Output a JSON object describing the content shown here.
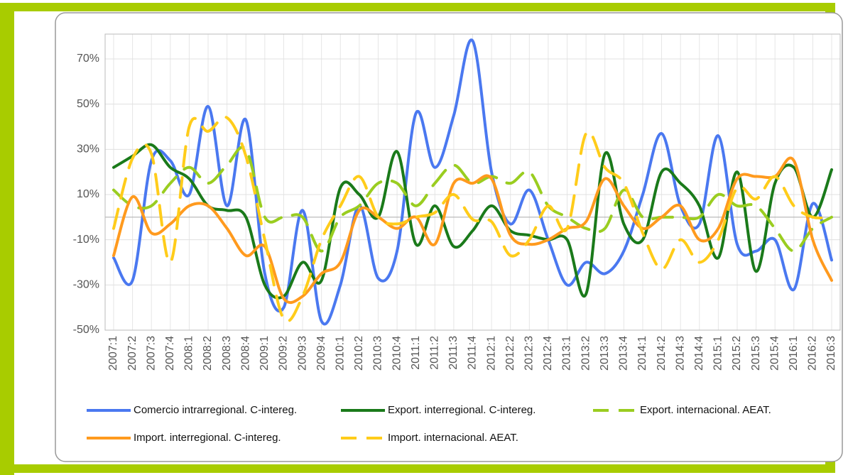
{
  "chart_data": {
    "type": "line",
    "smooth": true,
    "grid": true,
    "categories": [
      "2007:1",
      "2007:2",
      "2007:3",
      "2007:4",
      "2008:1",
      "2008:2",
      "2008:3",
      "2008:4",
      "2009:1",
      "2009:2",
      "2009:3",
      "2009:4",
      "2010:1",
      "2010:2",
      "2010:3",
      "2010:4",
      "2011:1",
      "2011:2",
      "2011:3",
      "2011:4",
      "2012:1",
      "2012:2",
      "2012:3",
      "2012:4",
      "2013:1",
      "2013:2",
      "2013:3",
      "2013:4",
      "2014:1",
      "2014:2",
      "2014:3",
      "2014:4",
      "2015:1",
      "2015:2",
      "2015:3",
      "2015:4",
      "2016:1",
      "2016:2",
      "2016:3"
    ],
    "ylim": [
      -50,
      81
    ],
    "yticks": [
      {
        "value": -50,
        "label": "-50%"
      },
      {
        "value": -30,
        "label": "-30%"
      },
      {
        "value": -10,
        "label": "-10%"
      },
      {
        "value": 10,
        "label": "10%"
      },
      {
        "value": 30,
        "label": "30%"
      },
      {
        "value": 50,
        "label": "50%"
      },
      {
        "value": 70,
        "label": "70%"
      }
    ],
    "series": [
      {
        "name": "Comercio intrarregional. C-intereg.",
        "color": "#4a78f0",
        "line_style": "solid",
        "values": [
          -18,
          -28,
          25,
          25,
          10,
          49,
          5,
          43,
          -25,
          -40,
          3,
          -46,
          -30,
          5,
          -27,
          -15,
          46,
          22,
          45,
          78,
          20,
          -3,
          12,
          -10,
          -30,
          -20,
          -25,
          -15,
          10,
          37,
          5,
          -3,
          36,
          -12,
          -15,
          -10,
          -32,
          6,
          -19
        ]
      },
      {
        "name": "Export. interregional. C-intereg.",
        "color": "#1a7a1a",
        "line_style": "solid",
        "values": [
          22,
          27,
          32,
          22,
          17,
          5,
          3,
          0,
          -30,
          -35,
          -20,
          -28,
          13,
          10,
          0,
          29,
          -12,
          5,
          -13,
          -6,
          5,
          -6,
          -8,
          -10,
          -10,
          -34,
          28,
          -3,
          -10,
          20,
          15,
          5,
          -18,
          20,
          -24,
          15,
          22,
          0,
          21
        ]
      },
      {
        "name": "Export. internacional. AEAT.",
        "color": "#9acd20",
        "line_style": "dashed",
        "values": [
          12,
          5,
          5,
          15,
          22,
          15,
          23,
          30,
          0,
          0,
          0,
          -15,
          0,
          5,
          15,
          15,
          5,
          15,
          23,
          15,
          18,
          15,
          20,
          5,
          0,
          -5,
          -5,
          12,
          0,
          0,
          0,
          0,
          10,
          5,
          5,
          -5,
          -15,
          -5,
          0
        ]
      },
      {
        "name": "Import. interregional. C-intereg.",
        "color": "#ff9a1e",
        "line_style": "solid",
        "values": [
          -17,
          9,
          -7,
          -3,
          5,
          5,
          -5,
          -17,
          -13,
          -36,
          -35,
          -25,
          -20,
          3,
          0,
          -5,
          0,
          -12,
          15,
          15,
          17,
          -8,
          -12,
          -10,
          -5,
          -2,
          17,
          5,
          -5,
          0,
          5,
          -10,
          -5,
          17,
          18,
          18,
          25,
          -10,
          -28
        ]
      },
      {
        "name": "Import. internacional. AEAT.",
        "color": "#ffcc1a",
        "line_style": "dashed",
        "values": [
          -5,
          26,
          28,
          -20,
          40,
          38,
          44,
          27,
          -10,
          -45,
          -35,
          -10,
          5,
          18,
          0,
          -3,
          0,
          2,
          10,
          -1,
          -2,
          -17,
          -10,
          5,
          -5,
          37,
          22,
          15,
          -7,
          -23,
          -10,
          -20,
          -10,
          13,
          8,
          18,
          5,
          0,
          0
        ]
      }
    ]
  }
}
